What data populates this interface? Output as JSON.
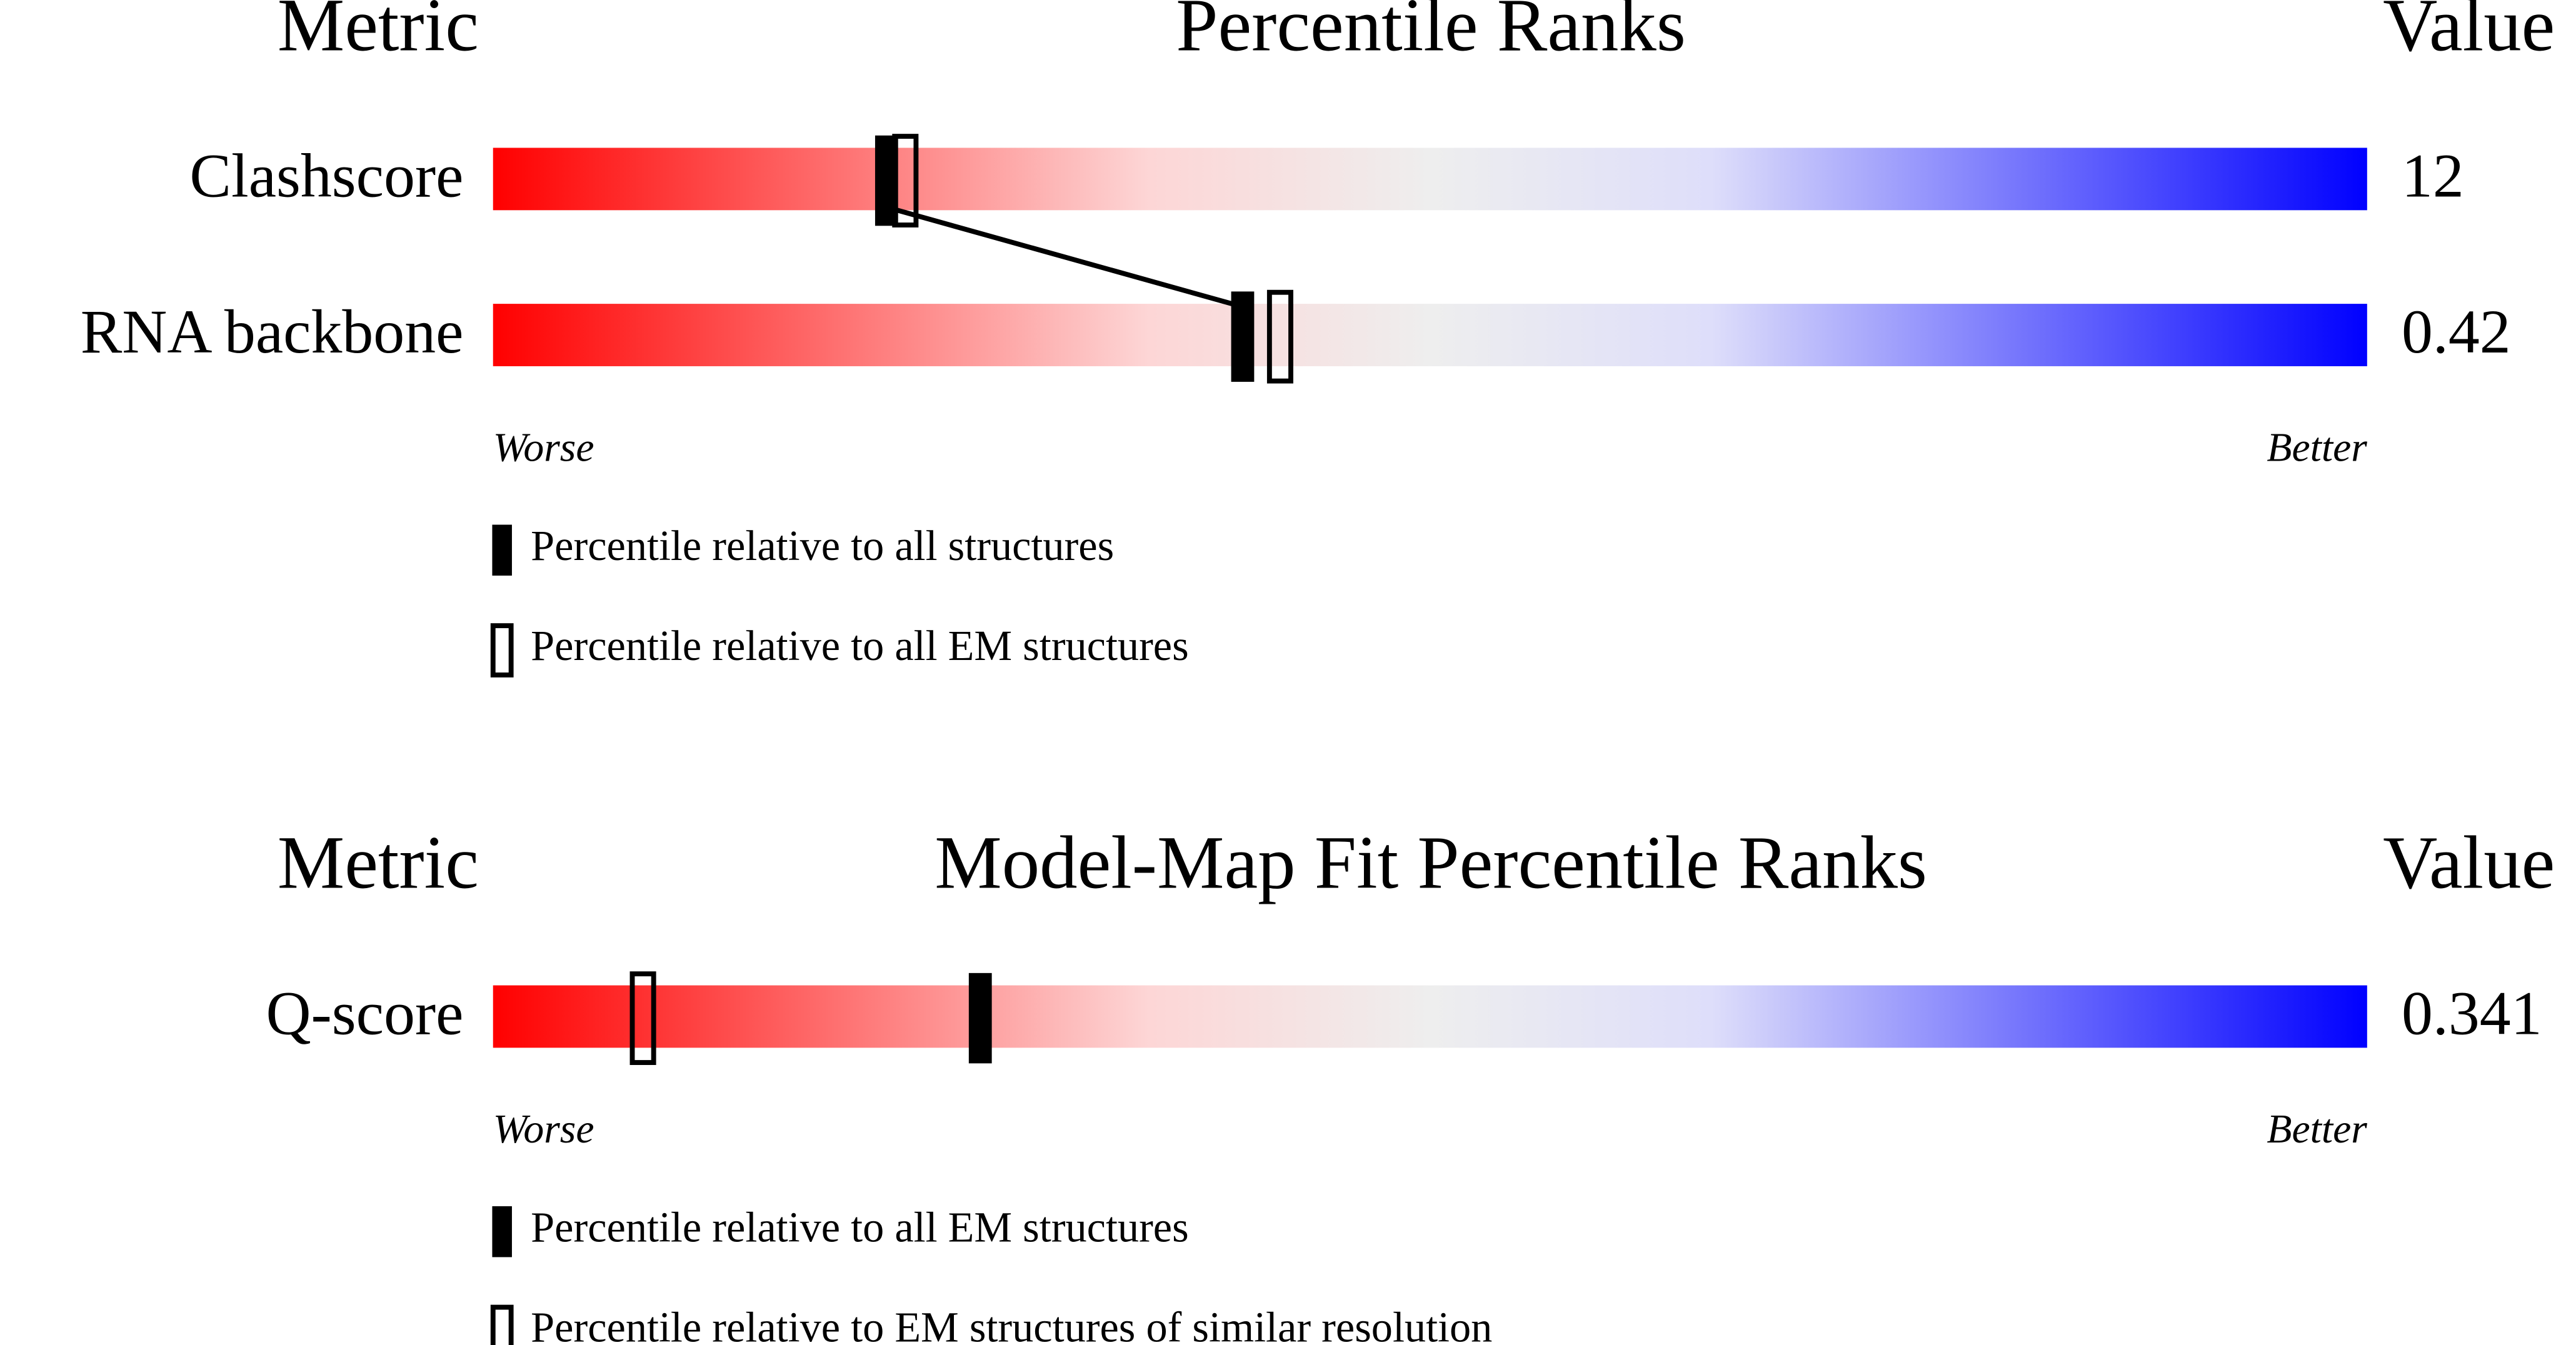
{
  "panels": [
    {
      "header": {
        "metric": "Metric",
        "title": "Percentile Ranks",
        "value": "Value"
      },
      "percentile_range": [
        0,
        100
      ],
      "rows": [
        {
          "metric": "Clashscore",
          "value": 12,
          "percentiles": [
            21,
            22
          ]
        },
        {
          "metric": "RNA backbone",
          "value": 0.42,
          "percentiles": [
            40,
            42
          ]
        }
      ],
      "scale": {
        "worse": "Worse",
        "better": "Better"
      },
      "legend": [
        "Percentile relative to all structures",
        "Percentile relative to all EM structures"
      ]
    },
    {
      "header": {
        "metric": "Metric",
        "title": "Model-Map Fit Percentile Ranks",
        "value": "Value"
      },
      "percentile_range": [
        0,
        100
      ],
      "rows": [
        {
          "metric": "Q-score",
          "value": 0.341,
          "percentiles": [
            26,
            8
          ]
        }
      ],
      "scale": {
        "worse": "Worse",
        "better": "Better"
      },
      "legend": [
        "Percentile relative to all EM structures",
        "Percentile relative to EM structures of similar resolution"
      ]
    }
  ]
}
